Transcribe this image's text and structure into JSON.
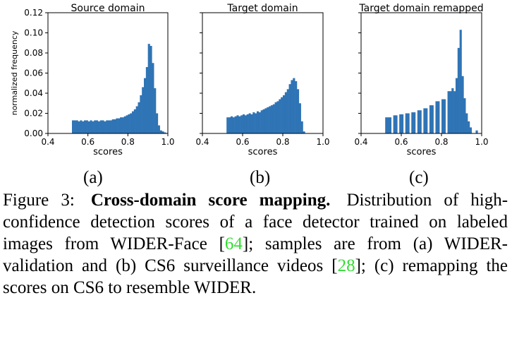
{
  "colors": {
    "bar": "#2f74b5",
    "citation": "#33dd33"
  },
  "panel_labels": [
    "(a)",
    "(b)",
    "(c)"
  ],
  "caption": {
    "lead": "Figure 3:",
    "bold": "Cross-domain score mapping.",
    "seg1": "Distribution of high-confidence detection scores of a face detector trained on labeled images from WIDER-Face [",
    "cite1": "64",
    "seg2": "]; samples are from (a) WIDER-validation and (b) CS6 surveillance videos [",
    "cite2": "28",
    "seg3": "]; (c) remapping the scores on CS6 to resemble WIDER."
  },
  "chart_data": [
    {
      "type": "bar",
      "title": "Source domain",
      "xlabel": "scores",
      "ylabel": "normalized frequency",
      "xlim": [
        0.4,
        1.0
      ],
      "ylim": [
        0,
        0.12
      ],
      "xticks": [
        "0.4",
        "0.6",
        "0.8",
        "1.0"
      ],
      "yticks": [
        "0.00",
        "0.02",
        "0.04",
        "0.06",
        "0.08",
        "0.10",
        "0.12"
      ],
      "bin_width": 0.01,
      "x": [
        0.52,
        0.53,
        0.54,
        0.55,
        0.56,
        0.57,
        0.58,
        0.59,
        0.6,
        0.61,
        0.62,
        0.63,
        0.64,
        0.65,
        0.66,
        0.67,
        0.68,
        0.69,
        0.7,
        0.71,
        0.72,
        0.73,
        0.74,
        0.75,
        0.76,
        0.77,
        0.78,
        0.79,
        0.8,
        0.81,
        0.82,
        0.83,
        0.84,
        0.85,
        0.86,
        0.87,
        0.88,
        0.89,
        0.9,
        0.91,
        0.92,
        0.93,
        0.94,
        0.95,
        0.96,
        0.97,
        0.98
      ],
      "values": [
        0.013,
        0.013,
        0.013,
        0.012,
        0.013,
        0.012,
        0.013,
        0.013,
        0.012,
        0.013,
        0.012,
        0.013,
        0.013,
        0.012,
        0.013,
        0.013,
        0.012,
        0.013,
        0.013,
        0.013,
        0.014,
        0.014,
        0.015,
        0.015,
        0.016,
        0.016,
        0.017,
        0.018,
        0.019,
        0.02,
        0.022,
        0.024,
        0.027,
        0.031,
        0.038,
        0.046,
        0.055,
        0.066,
        0.089,
        0.087,
        0.07,
        0.045,
        0.02,
        0.008,
        0.003,
        0.002,
        0.001
      ]
    },
    {
      "type": "bar",
      "title": "Target domain",
      "xlabel": "scores",
      "xlim": [
        0.4,
        1.0
      ],
      "ylim": [
        0,
        0.12
      ],
      "xticks": [
        "0.4",
        "0.6",
        "0.8",
        "1.0"
      ],
      "bin_width": 0.01,
      "x": [
        0.52,
        0.53,
        0.54,
        0.55,
        0.56,
        0.57,
        0.58,
        0.59,
        0.6,
        0.61,
        0.62,
        0.63,
        0.64,
        0.65,
        0.66,
        0.67,
        0.68,
        0.69,
        0.7,
        0.71,
        0.72,
        0.73,
        0.74,
        0.75,
        0.76,
        0.77,
        0.78,
        0.79,
        0.8,
        0.81,
        0.82,
        0.83,
        0.84,
        0.85,
        0.86,
        0.87,
        0.88,
        0.89,
        0.9
      ],
      "values": [
        0.016,
        0.016,
        0.017,
        0.016,
        0.017,
        0.018,
        0.017,
        0.018,
        0.019,
        0.018,
        0.019,
        0.02,
        0.019,
        0.021,
        0.02,
        0.022,
        0.021,
        0.023,
        0.024,
        0.025,
        0.026,
        0.027,
        0.028,
        0.029,
        0.031,
        0.032,
        0.034,
        0.036,
        0.038,
        0.041,
        0.044,
        0.049,
        0.053,
        0.055,
        0.052,
        0.044,
        0.03,
        0.012,
        0.002
      ]
    },
    {
      "type": "bar",
      "title": "Target domain remapped",
      "xlabel": "scores",
      "xlim": [
        0.4,
        1.0
      ],
      "ylim": [
        0,
        0.12
      ],
      "xticks": [
        "0.4",
        "0.6",
        "0.8",
        "1.0"
      ],
      "bin_width": 0.01,
      "x": [
        0.52,
        0.53,
        0.54,
        0.56,
        0.57,
        0.59,
        0.6,
        0.62,
        0.63,
        0.65,
        0.66,
        0.68,
        0.69,
        0.71,
        0.72,
        0.74,
        0.75,
        0.77,
        0.78,
        0.8,
        0.81,
        0.83,
        0.84,
        0.85,
        0.86,
        0.87,
        0.88,
        0.89,
        0.9,
        0.91,
        0.92,
        0.93,
        0.94,
        0.97
      ],
      "values": [
        0.016,
        0.016,
        0.016,
        0.018,
        0.018,
        0.019,
        0.019,
        0.02,
        0.02,
        0.021,
        0.021,
        0.023,
        0.023,
        0.025,
        0.025,
        0.028,
        0.028,
        0.032,
        0.032,
        0.034,
        0.034,
        0.042,
        0.042,
        0.045,
        0.042,
        0.055,
        0.085,
        0.103,
        0.057,
        0.035,
        0.02,
        0.012,
        0.006,
        0.003
      ]
    }
  ]
}
